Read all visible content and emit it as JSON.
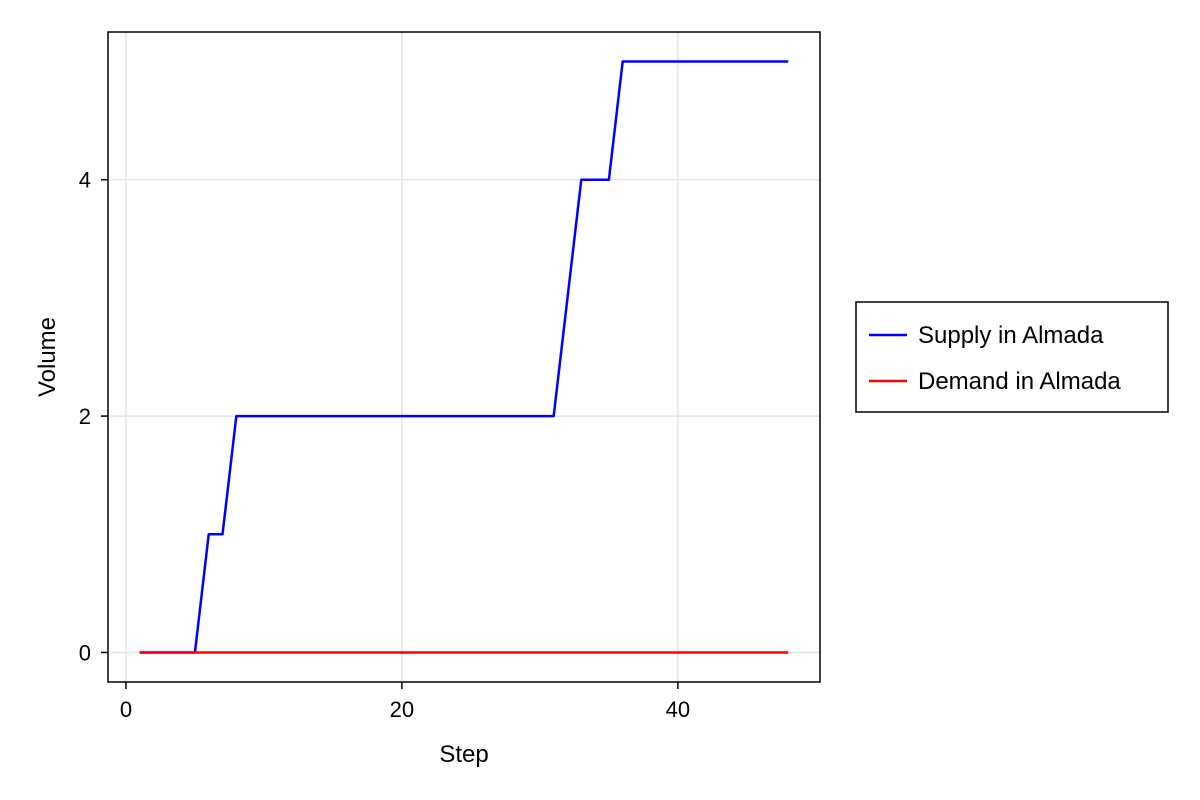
{
  "chart_data": {
    "type": "line",
    "title": "",
    "xlabel": "Step",
    "ylabel": "Volume",
    "xlim": [
      -1.3,
      50.3
    ],
    "ylim": [
      -0.25,
      5.25
    ],
    "xticks": [
      0,
      20,
      40
    ],
    "yticks": [
      0,
      2,
      4
    ],
    "grid": true,
    "legend_position": "right",
    "series": [
      {
        "name": "Supply in Almada",
        "color": "#0000ff",
        "x": [
          1,
          2,
          3,
          4,
          5,
          6,
          7,
          8,
          9,
          10,
          11,
          12,
          13,
          14,
          15,
          16,
          17,
          18,
          19,
          20,
          21,
          22,
          23,
          24,
          25,
          26,
          27,
          28,
          29,
          30,
          31,
          32,
          33,
          34,
          35,
          36,
          37,
          38,
          39,
          40,
          41,
          42,
          43,
          44,
          45,
          46,
          47,
          48
        ],
        "y": [
          0,
          0,
          0,
          0,
          0,
          1,
          1,
          2,
          2,
          2,
          2,
          2,
          2,
          2,
          2,
          2,
          2,
          2,
          2,
          2,
          2,
          2,
          2,
          2,
          2,
          2,
          2,
          2,
          2,
          2,
          2,
          3,
          4,
          4,
          4,
          5,
          5,
          5,
          5,
          5,
          5,
          5,
          5,
          5,
          5,
          5,
          5,
          5
        ]
      },
      {
        "name": "Demand in Almada",
        "color": "#ff0000",
        "x": [
          1,
          2,
          3,
          4,
          5,
          6,
          7,
          8,
          9,
          10,
          11,
          12,
          13,
          14,
          15,
          16,
          17,
          18,
          19,
          20,
          21,
          22,
          23,
          24,
          25,
          26,
          27,
          28,
          29,
          30,
          31,
          32,
          33,
          34,
          35,
          36,
          37,
          38,
          39,
          40,
          41,
          42,
          43,
          44,
          45,
          46,
          47,
          48
        ],
        "y": [
          0,
          0,
          0,
          0,
          0,
          0,
          0,
          0,
          0,
          0,
          0,
          0,
          0,
          0,
          0,
          0,
          0,
          0,
          0,
          0,
          0,
          0,
          0,
          0,
          0,
          0,
          0,
          0,
          0,
          0,
          0,
          0,
          0,
          0,
          0,
          0,
          0,
          0,
          0,
          0,
          0,
          0,
          0,
          0,
          0,
          0,
          0,
          0
        ]
      }
    ]
  }
}
